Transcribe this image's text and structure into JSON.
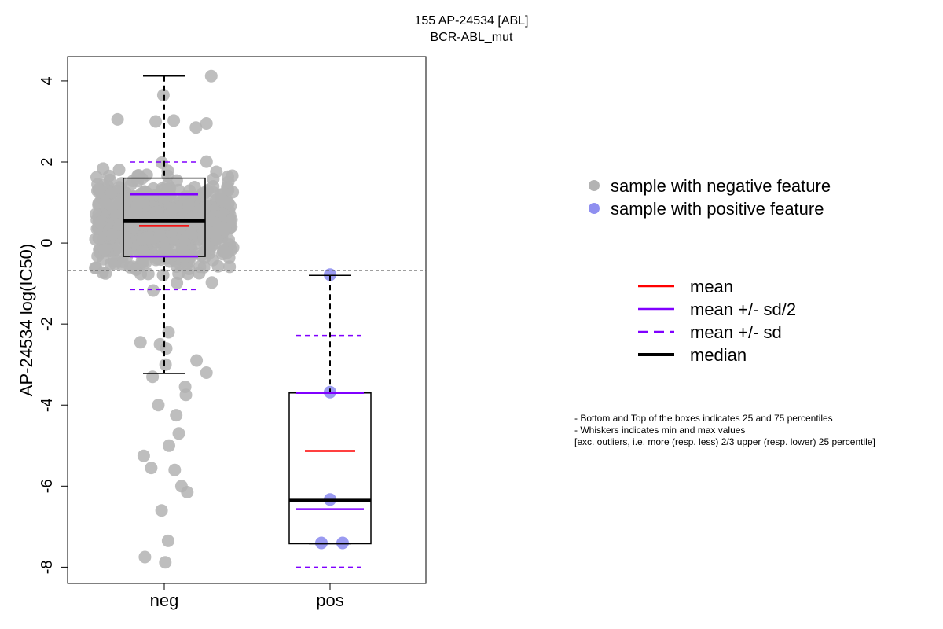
{
  "chart_data": {
    "type": "boxplot",
    "title": "155 AP-24534 [ABL]",
    "subtitle": "BCR-ABL_mut",
    "ylabel": "AP-24534 log(IC50)",
    "xlabel": "",
    "ylim": [
      -8.4,
      4.6
    ],
    "yticks": [
      "4",
      "2",
      "0",
      "-2",
      "-4",
      "-6",
      "-8"
    ],
    "ytick_values": [
      4,
      2,
      0,
      -2,
      -4,
      -6,
      -8
    ],
    "categories": [
      "neg",
      "pos"
    ],
    "threshold_line": -0.68,
    "groups": [
      {
        "category": "neg",
        "color": "#b3b3b3",
        "q1": -0.33,
        "median": 0.55,
        "q3": 1.6,
        "mean": 0.42,
        "mean_plus_half_sd": 1.2,
        "mean_minus_half_sd": -0.33,
        "mean_plus_sd": 2.0,
        "mean_minus_sd": -1.15,
        "whisker_low": -3.22,
        "whisker_high": 4.12,
        "outliers": [
          -3.55,
          -3.75,
          -4.0,
          -4.25,
          -4.7,
          -5.0,
          -5.25,
          -5.55,
          -5.6,
          -6.0,
          -6.15,
          -6.6,
          -7.35,
          -7.75,
          -7.88
        ]
      },
      {
        "category": "pos",
        "color": "#8f8ff0",
        "q1": -7.42,
        "median": -6.35,
        "q3": -3.7,
        "mean": -5.13,
        "mean_plus_half_sd": -3.7,
        "mean_minus_half_sd": -6.57,
        "mean_plus_sd": -2.28,
        "mean_minus_sd": -8.0,
        "whisker_low": -7.42,
        "whisker_high": -0.8,
        "points": [
          -0.78,
          -3.68,
          -6.33,
          -7.4,
          -7.4
        ]
      }
    ],
    "legend_points": [
      {
        "label": "sample with negative feature",
        "color": "#b3b3b3"
      },
      {
        "label": "sample with positive feature",
        "color": "#8f8ff0"
      }
    ],
    "legend_lines": [
      {
        "label": "mean",
        "color": "#ff0000",
        "style": "solid"
      },
      {
        "label": "mean +/- sd/2",
        "color": "#8000ff",
        "style": "solid"
      },
      {
        "label": "mean +/- sd",
        "color": "#8000ff",
        "style": "dashed"
      },
      {
        "label": "median",
        "color": "#000000",
        "style": "thick"
      }
    ],
    "notes": [
      "- Bottom and Top of the boxes indicates 25 and 75 percentiles",
      "- Whiskers indicates min and max values",
      "[exc. outliers, i.e. more (resp. less) 2/3 upper (resp. lower) 25 percentile]"
    ]
  }
}
